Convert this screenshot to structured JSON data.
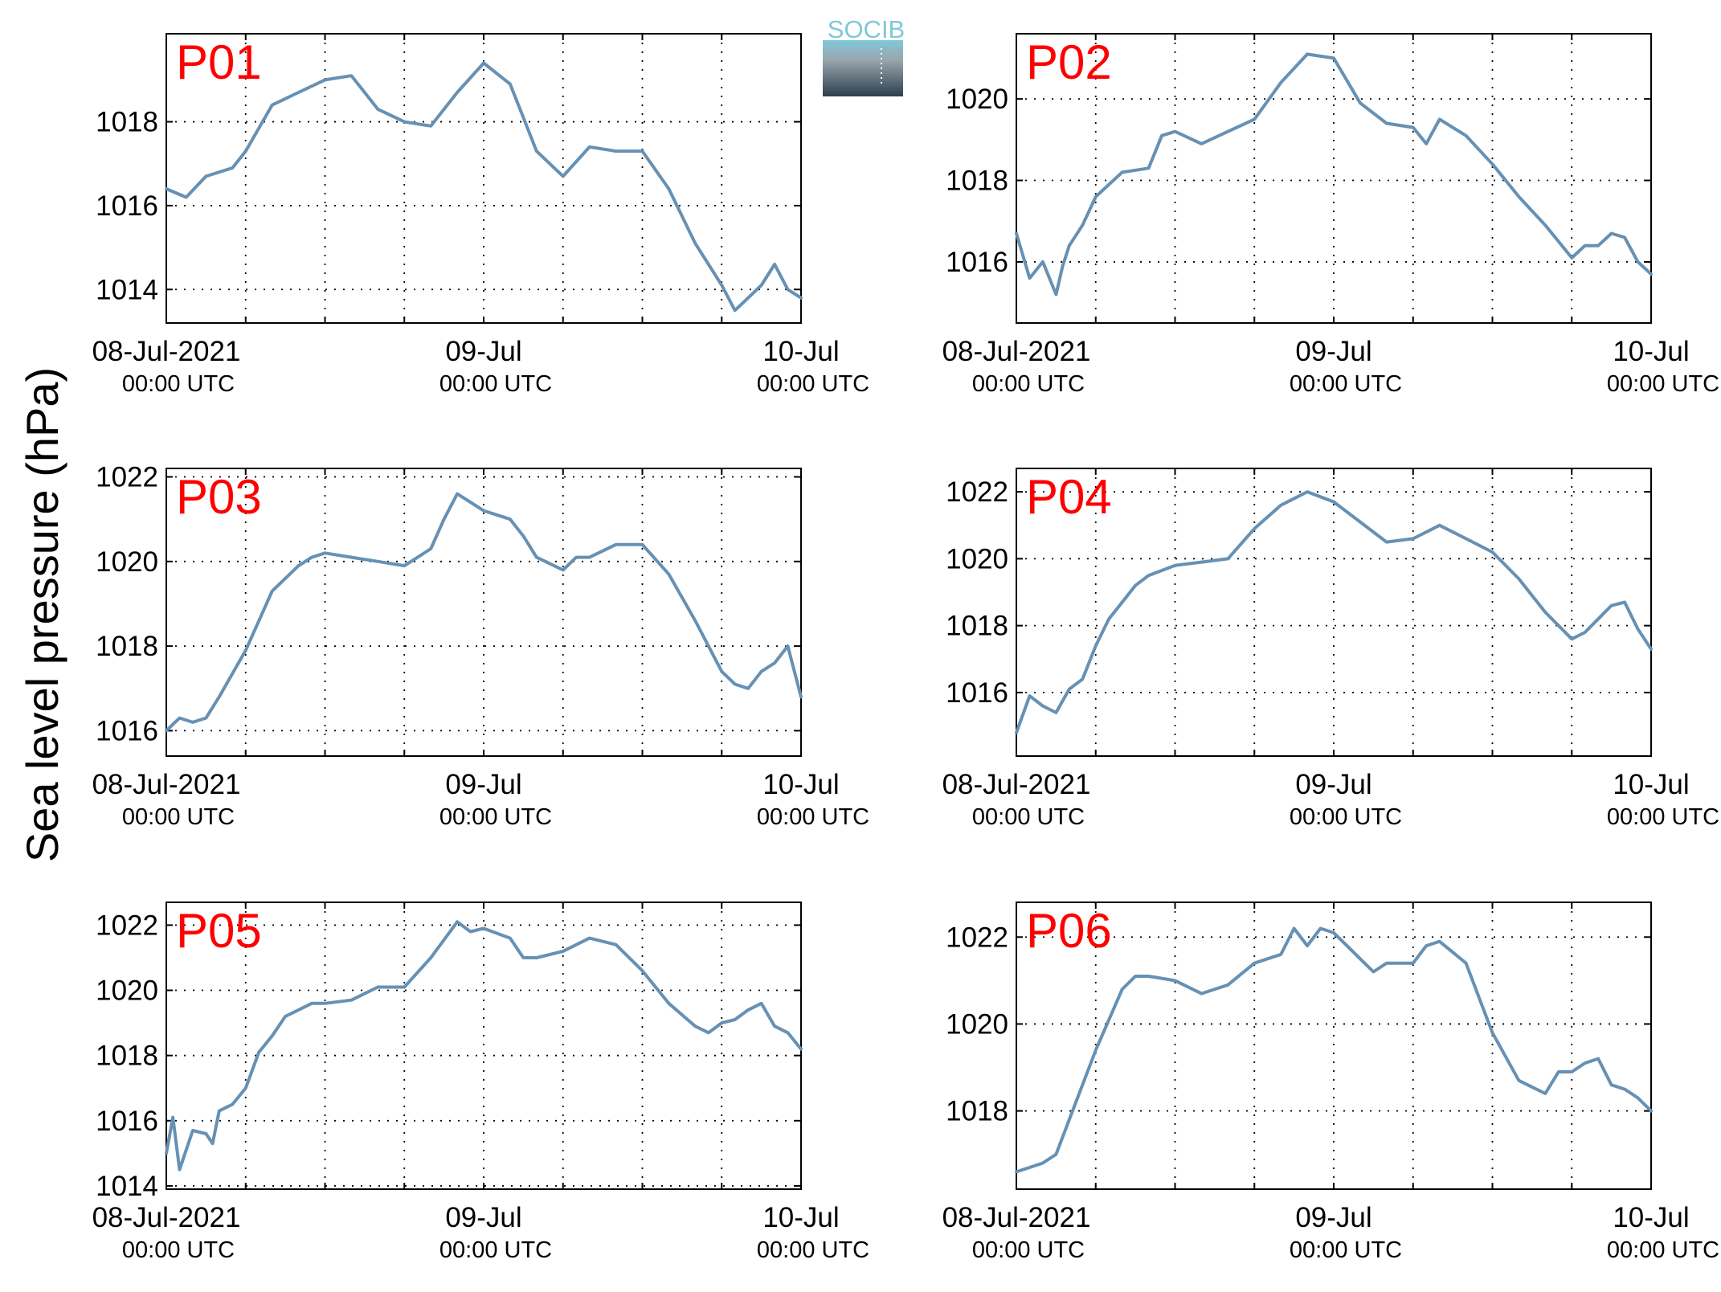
{
  "figure": {
    "ylabel": "Sea level pressure (hPa)",
    "logo_text": "SOCIB",
    "colors": {
      "line": "#6691b4",
      "panel_label": "#ff0000",
      "grid": "#000000",
      "logo_top": "#7ec8d8",
      "logo_bottom": "#2d3f4e"
    }
  },
  "chart_data": [
    {
      "type": "line",
      "label": "P01",
      "grid": true,
      "xlim": [
        "2021-07-08 00:00",
        "2021-07-10 00:00"
      ],
      "ylim": [
        1013.2,
        1020.1
      ],
      "yticks": [
        1014,
        1016,
        1018
      ],
      "xticks": [
        {
          "label": "08-Jul-2021",
          "sub": "00:00 UTC"
        },
        {
          "label": "09-Jul",
          "sub": "00:00 UTC"
        },
        {
          "label": "10-Jul",
          "sub": "00:00 UTC"
        }
      ],
      "x_hours": [
        0,
        1.5,
        3,
        5,
        6,
        8,
        10,
        12,
        14,
        16,
        18,
        20,
        22,
        24,
        26,
        27,
        28,
        30,
        32,
        34,
        36,
        38,
        40,
        42,
        43,
        44,
        45,
        46,
        47,
        48
      ],
      "values": [
        1016.4,
        1016.2,
        1016.7,
        1016.9,
        1017.3,
        1018.4,
        1018.7,
        1019.0,
        1019.1,
        1018.3,
        1018.0,
        1017.9,
        1018.7,
        1019.4,
        1018.9,
        1018.1,
        1017.3,
        1016.7,
        1017.4,
        1017.3,
        1017.3,
        1016.4,
        1015.1,
        1014.1,
        1013.5,
        1013.8,
        1014.1,
        1014.6,
        1014.0,
        1013.8
      ]
    },
    {
      "type": "line",
      "label": "P02",
      "grid": true,
      "xlim": [
        "2021-07-08 00:00",
        "2021-07-10 00:00"
      ],
      "ylim": [
        1014.5,
        1021.6
      ],
      "yticks": [
        1016,
        1018,
        1020
      ],
      "xticks": [
        {
          "label": "08-Jul-2021",
          "sub": "00:00 UTC"
        },
        {
          "label": "09-Jul",
          "sub": "00:00 UTC"
        },
        {
          "label": "10-Jul",
          "sub": "00:00 UTC"
        }
      ],
      "x_hours": [
        0,
        1,
        2,
        3,
        3.5,
        4,
        5,
        6,
        8,
        10,
        11,
        12,
        14,
        16,
        18,
        20,
        22,
        24,
        26,
        28,
        30,
        31,
        32,
        34,
        36,
        38,
        40,
        42,
        43,
        44,
        45,
        46,
        47,
        48
      ],
      "values": [
        1016.7,
        1015.6,
        1016.0,
        1015.2,
        1015.9,
        1016.4,
        1016.9,
        1017.6,
        1018.2,
        1018.3,
        1019.1,
        1019.2,
        1018.9,
        1019.2,
        1019.5,
        1020.4,
        1021.1,
        1021.0,
        1019.9,
        1019.4,
        1019.3,
        1018.9,
        1019.5,
        1019.1,
        1018.4,
        1017.6,
        1016.9,
        1016.1,
        1016.4,
        1016.4,
        1016.7,
        1016.6,
        1016.0,
        1015.7
      ]
    },
    {
      "type": "line",
      "label": "P03",
      "grid": true,
      "xlim": [
        "2021-07-08 00:00",
        "2021-07-10 00:00"
      ],
      "ylim": [
        1015.4,
        1022.2
      ],
      "yticks": [
        1016,
        1018,
        1020,
        1022
      ],
      "xticks": [
        {
          "label": "08-Jul-2021",
          "sub": "00:00 UTC"
        },
        {
          "label": "09-Jul",
          "sub": "00:00 UTC"
        },
        {
          "label": "10-Jul",
          "sub": "00:00 UTC"
        }
      ],
      "x_hours": [
        0,
        1,
        2,
        3,
        4,
        6,
        8,
        10,
        11,
        12,
        14,
        16,
        18,
        20,
        21,
        22,
        24,
        26,
        27,
        28,
        30,
        31,
        32,
        34,
        36,
        38,
        40,
        42,
        43,
        44,
        45,
        46,
        47,
        48
      ],
      "values": [
        1016.0,
        1016.3,
        1016.2,
        1016.3,
        1016.8,
        1017.9,
        1019.3,
        1019.9,
        1020.1,
        1020.2,
        1020.1,
        1020.0,
        1019.9,
        1020.3,
        1021.0,
        1021.6,
        1021.2,
        1021.0,
        1020.6,
        1020.1,
        1019.8,
        1020.1,
        1020.1,
        1020.4,
        1020.4,
        1019.7,
        1018.6,
        1017.4,
        1017.1,
        1017.0,
        1017.4,
        1017.6,
        1018.0,
        1016.8
      ]
    },
    {
      "type": "line",
      "label": "P04",
      "grid": true,
      "xlim": [
        "2021-07-08 00:00",
        "2021-07-10 00:00"
      ],
      "ylim": [
        1014.1,
        1022.7
      ],
      "yticks": [
        1016,
        1018,
        1020,
        1022
      ],
      "xticks": [
        {
          "label": "08-Jul-2021",
          "sub": "00:00 UTC"
        },
        {
          "label": "09-Jul",
          "sub": "00:00 UTC"
        },
        {
          "label": "10-Jul",
          "sub": "00:00 UTC"
        }
      ],
      "x_hours": [
        0,
        1,
        2,
        3,
        4,
        5,
        6,
        7,
        8,
        9,
        10,
        12,
        14,
        16,
        18,
        20,
        22,
        24,
        26,
        28,
        30,
        32,
        34,
        36,
        38,
        40,
        42,
        43,
        44,
        45,
        46,
        47,
        48
      ],
      "values": [
        1014.8,
        1015.9,
        1015.6,
        1015.4,
        1016.1,
        1016.4,
        1017.4,
        1018.2,
        1018.7,
        1019.2,
        1019.5,
        1019.8,
        1019.9,
        1020.0,
        1020.9,
        1021.6,
        1022.0,
        1021.7,
        1021.1,
        1020.5,
        1020.6,
        1021.0,
        1020.6,
        1020.2,
        1019.4,
        1018.4,
        1017.6,
        1017.8,
        1018.2,
        1018.6,
        1018.7,
        1017.9,
        1017.3
      ]
    },
    {
      "type": "line",
      "label": "P05",
      "grid": true,
      "xlim": [
        "2021-07-08 00:00",
        "2021-07-10 00:00"
      ],
      "ylim": [
        1013.9,
        1022.7
      ],
      "yticks": [
        1014,
        1016,
        1018,
        1020,
        1022
      ],
      "xticks": [
        {
          "label": "08-Jul-2021",
          "sub": "00:00 UTC"
        },
        {
          "label": "09-Jul",
          "sub": "00:00 UTC"
        },
        {
          "label": "10-Jul",
          "sub": "00:00 UTC"
        }
      ],
      "x_hours": [
        0,
        0.5,
        1,
        2,
        3,
        3.5,
        4,
        5,
        6,
        7,
        8,
        9,
        10,
        11,
        12,
        14,
        16,
        18,
        20,
        22,
        23,
        24,
        26,
        27,
        28,
        30,
        32,
        34,
        36,
        38,
        40,
        41,
        42,
        43,
        44,
        45,
        46,
        47,
        48
      ],
      "values": [
        1015.0,
        1016.1,
        1014.5,
        1015.7,
        1015.6,
        1015.3,
        1016.3,
        1016.5,
        1017.0,
        1018.1,
        1018.6,
        1019.2,
        1019.4,
        1019.6,
        1019.6,
        1019.7,
        1020.1,
        1020.1,
        1021.0,
        1022.1,
        1021.8,
        1021.9,
        1021.6,
        1021.0,
        1021.0,
        1021.2,
        1021.6,
        1021.4,
        1020.6,
        1019.6,
        1018.9,
        1018.7,
        1019.0,
        1019.1,
        1019.4,
        1019.6,
        1018.9,
        1018.7,
        1018.2
      ]
    },
    {
      "type": "line",
      "label": "P06",
      "grid": true,
      "xlim": [
        "2021-07-08 00:00",
        "2021-07-10 00:00"
      ],
      "ylim": [
        1016.2,
        1022.8
      ],
      "yticks": [
        1018,
        1020,
        1022
      ],
      "xticks": [
        {
          "label": "08-Jul-2021",
          "sub": "00:00 UTC"
        },
        {
          "label": "09-Jul",
          "sub": "00:00 UTC"
        },
        {
          "label": "10-Jul",
          "sub": "00:00 UTC"
        }
      ],
      "x_hours": [
        0,
        1,
        2,
        3,
        4,
        6,
        8,
        9,
        10,
        12,
        14,
        16,
        18,
        20,
        21,
        22,
        23,
        24,
        25,
        26,
        27,
        28,
        30,
        31,
        32,
        34,
        35,
        36,
        38,
        40,
        41,
        42,
        43,
        44,
        45,
        46,
        47,
        48
      ],
      "values": [
        1016.6,
        1016.7,
        1016.8,
        1017.0,
        1017.8,
        1019.4,
        1020.8,
        1021.1,
        1021.1,
        1021.0,
        1020.7,
        1020.9,
        1021.4,
        1021.6,
        1022.2,
        1021.8,
        1022.2,
        1022.1,
        1021.8,
        1021.5,
        1021.2,
        1021.4,
        1021.4,
        1021.8,
        1021.9,
        1021.4,
        1020.6,
        1019.8,
        1018.7,
        1018.4,
        1018.9,
        1018.9,
        1019.1,
        1019.2,
        1018.6,
        1018.5,
        1018.3,
        1018.0
      ]
    }
  ]
}
